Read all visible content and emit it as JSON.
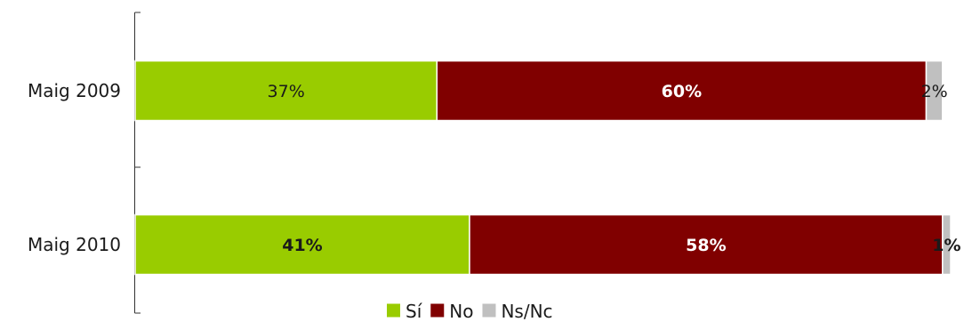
{
  "chart_data": {
    "type": "bar",
    "orientation": "horizontal",
    "stacked": true,
    "categories": [
      "Maig 2009",
      "Maig 2010"
    ],
    "series": [
      {
        "name": "Sí",
        "values": [
          37,
          41
        ],
        "labels": [
          "37%",
          "41%"
        ],
        "color": "#99cc00",
        "label_color": "#1a1a1a",
        "label_bold": [
          false,
          true
        ]
      },
      {
        "name": "No",
        "values": [
          60,
          58
        ],
        "labels": [
          "60%",
          "58%"
        ],
        "color": "#800000",
        "label_color": "#ffffff",
        "label_bold": [
          true,
          true
        ]
      },
      {
        "name": "Ns/Nc",
        "values": [
          2,
          1
        ],
        "labels": [
          "2%",
          "1%"
        ],
        "color": "#c0c0c0",
        "label_color": "#1a1a1a",
        "label_bold": [
          false,
          true
        ]
      }
    ],
    "xlim": [
      0,
      100
    ],
    "grid": false,
    "legend_position": "bottom"
  }
}
